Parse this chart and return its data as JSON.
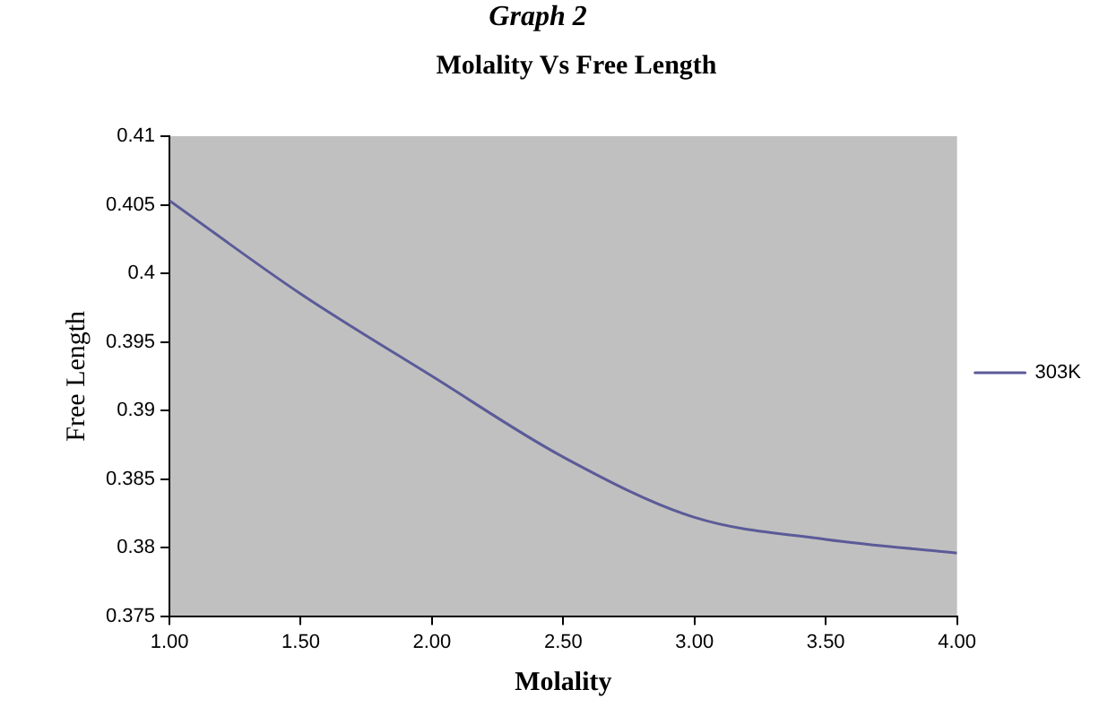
{
  "chart_data": {
    "type": "line",
    "title": "Molality Vs Free Length",
    "xlabel": "Molality",
    "ylabel": "Free Length",
    "annotations": [
      "Graph 2"
    ],
    "x": [
      1.0,
      1.5,
      2.0,
      2.5,
      3.0,
      3.5,
      4.0
    ],
    "series": [
      {
        "name": "303K",
        "color": "#5b5b99",
        "values": [
          0.4053,
          0.3985,
          0.3925,
          0.3866,
          0.3822,
          0.3806,
          0.3796
        ]
      }
    ],
    "xlim": [
      1.0,
      4.0
    ],
    "xticks": [
      {
        "value": 1.0,
        "label": "1.00"
      },
      {
        "value": 1.5,
        "label": "1.50"
      },
      {
        "value": 2.0,
        "label": "2.00"
      },
      {
        "value": 2.5,
        "label": "2.50"
      },
      {
        "value": 3.0,
        "label": "3.00"
      },
      {
        "value": 3.5,
        "label": "3.50"
      },
      {
        "value": 4.0,
        "label": "4.00"
      }
    ],
    "ylim": [
      0.375,
      0.41
    ],
    "yticks": [
      0.375,
      0.38,
      0.385,
      0.39,
      0.395,
      0.4,
      0.405,
      0.41
    ],
    "grid": false,
    "legend": "right",
    "marker": "none",
    "line_style": "solid"
  }
}
